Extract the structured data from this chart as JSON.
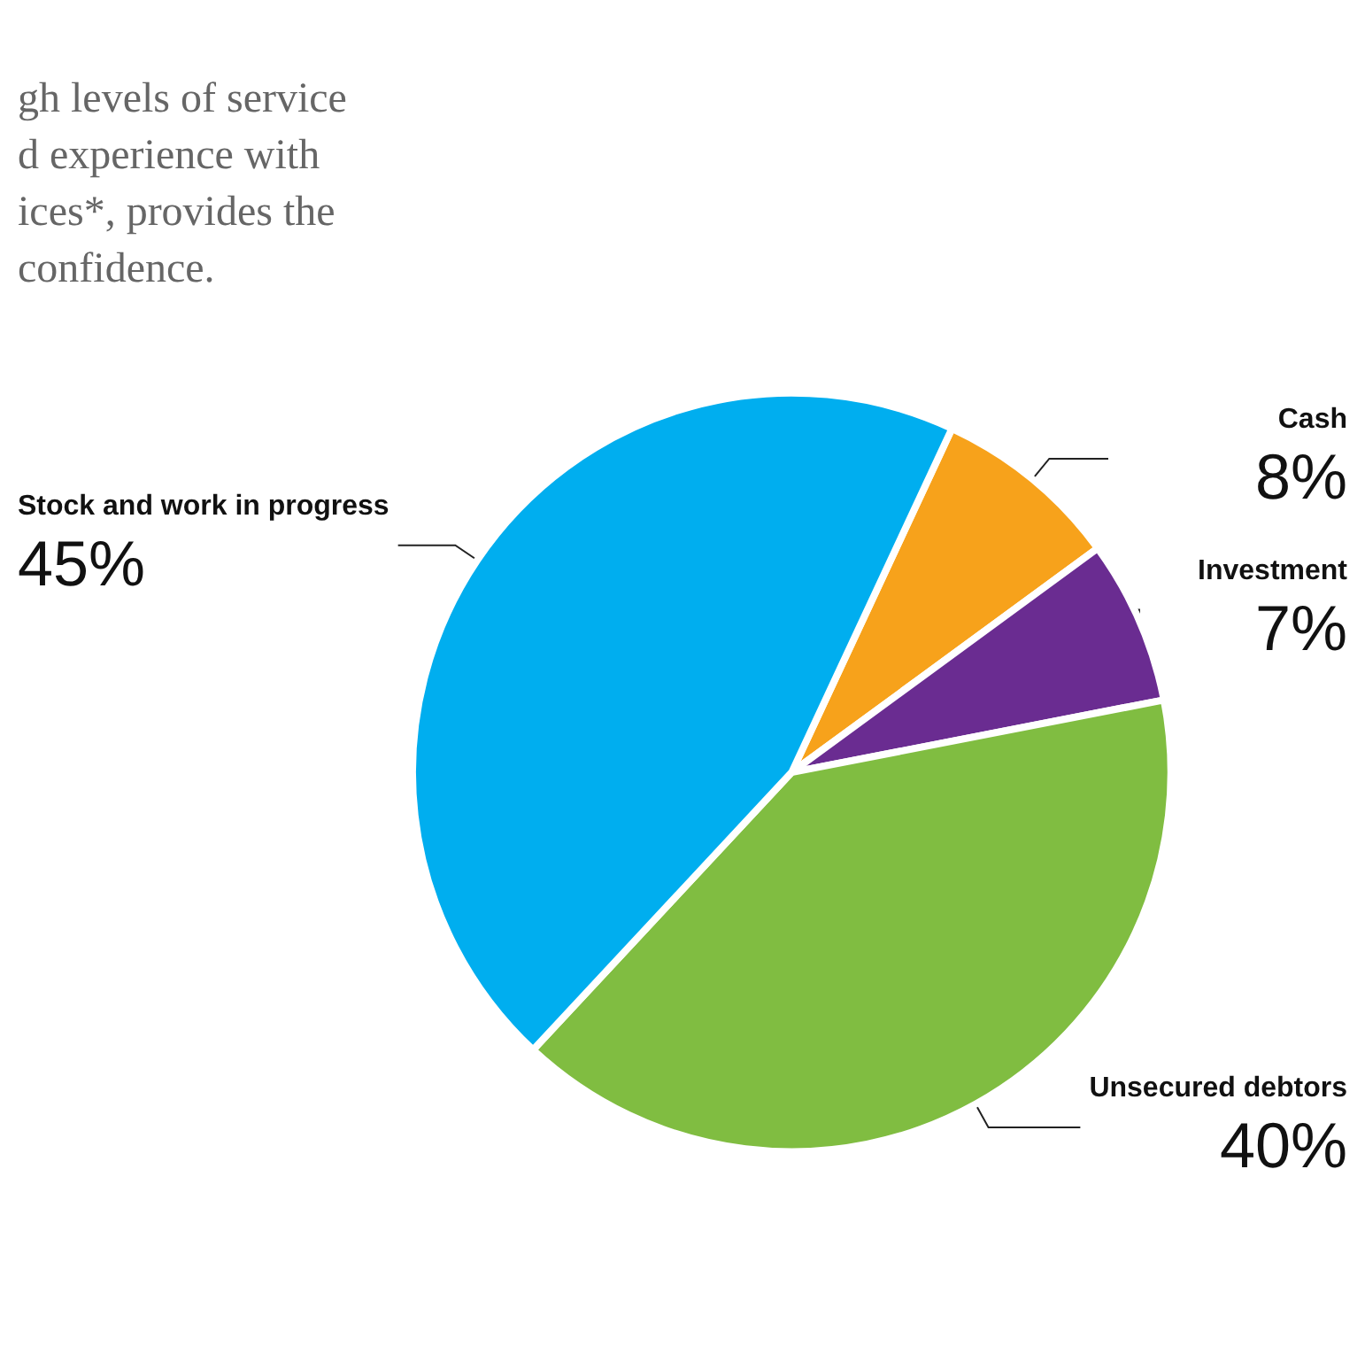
{
  "chart_data": {
    "type": "pie",
    "categories": [
      "Cash",
      "Investment",
      "Unsecured debtors",
      "Stock and work in progress"
    ],
    "values": [
      8,
      7,
      40,
      45
    ],
    "value_labels": [
      "8%",
      "7%",
      "40%",
      "45%"
    ],
    "colors": [
      "#f7a21b",
      "#6a2c91",
      "#80bd41",
      "#00aeef"
    ],
    "annotations": [
      "gh levels of service\nd experience with\nices*, provides the\nconfidence."
    ]
  }
}
